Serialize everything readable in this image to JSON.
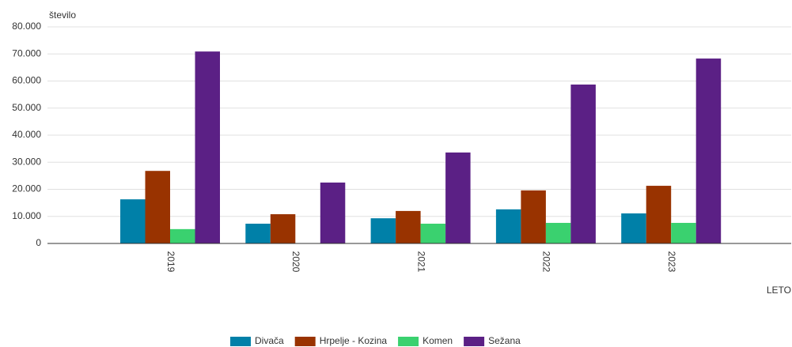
{
  "chart_data": {
    "type": "bar",
    "y_axis_label": "število",
    "x_axis_label": "LETO",
    "categories": [
      "2019",
      "2020",
      "2021",
      "2022",
      "2023"
    ],
    "series": [
      {
        "name": "Divača",
        "color": "#0080a8",
        "values": [
          16300,
          7300,
          9300,
          12600,
          11100
        ]
      },
      {
        "name": "Hrpelje - Kozina",
        "color": "#993300",
        "values": [
          26800,
          10800,
          12000,
          19600,
          21300
        ]
      },
      {
        "name": "Komen",
        "color": "#3ad16f",
        "values": [
          5300,
          null,
          7300,
          7600,
          7600
        ]
      },
      {
        "name": "Sežana",
        "color": "#5b2085",
        "values": [
          70900,
          22500,
          33600,
          58700,
          68300
        ]
      }
    ],
    "ylim": [
      0,
      80000
    ],
    "yticks": [
      0,
      {
        "value": 10000,
        "label": "10.000"
      },
      {
        "value": 20000,
        "label": "20.000"
      },
      {
        "value": 30000,
        "label": "30.000"
      },
      {
        "value": 40000,
        "label": "40.000"
      },
      {
        "value": 50000,
        "label": "50.000"
      },
      {
        "value": 60000,
        "label": "60.000"
      },
      {
        "value": 70000,
        "label": "70.000"
      },
      {
        "value": 80000,
        "label": "80.000"
      }
    ],
    "grid": true,
    "legend": "bottom"
  }
}
